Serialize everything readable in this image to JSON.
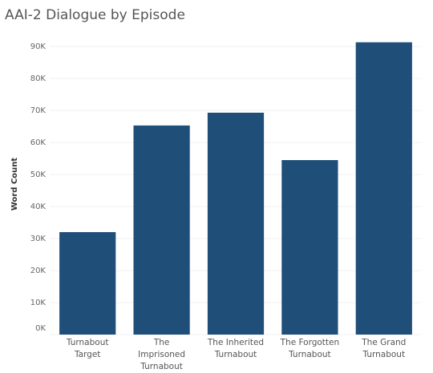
{
  "chart_data": {
    "type": "bar",
    "title": "AAI-2 Dialogue by Episode",
    "y_label": "Word Count",
    "categories": [
      "Turnabout Target",
      "The Imprisoned Turnabout",
      "The Inherited Turnabout",
      "The Forgotten Turnabout",
      "The Grand Turnabout"
    ],
    "values": [
      32000,
      65300,
      69300,
      54500,
      91300
    ],
    "color": "#1f4e79",
    "ylim": [
      0,
      95000
    ],
    "yticks": [
      {
        "value": 0,
        "label": "0K"
      },
      {
        "value": 10000,
        "label": "10K"
      },
      {
        "value": 20000,
        "label": "20K"
      },
      {
        "value": 30000,
        "label": "30K"
      },
      {
        "value": 40000,
        "label": "40K"
      },
      {
        "value": 50000,
        "label": "50K"
      },
      {
        "value": 60000,
        "label": "60K"
      },
      {
        "value": 70000,
        "label": "70K"
      },
      {
        "value": 80000,
        "label": "80K"
      },
      {
        "value": 90000,
        "label": "90K"
      }
    ],
    "grid": true
  }
}
